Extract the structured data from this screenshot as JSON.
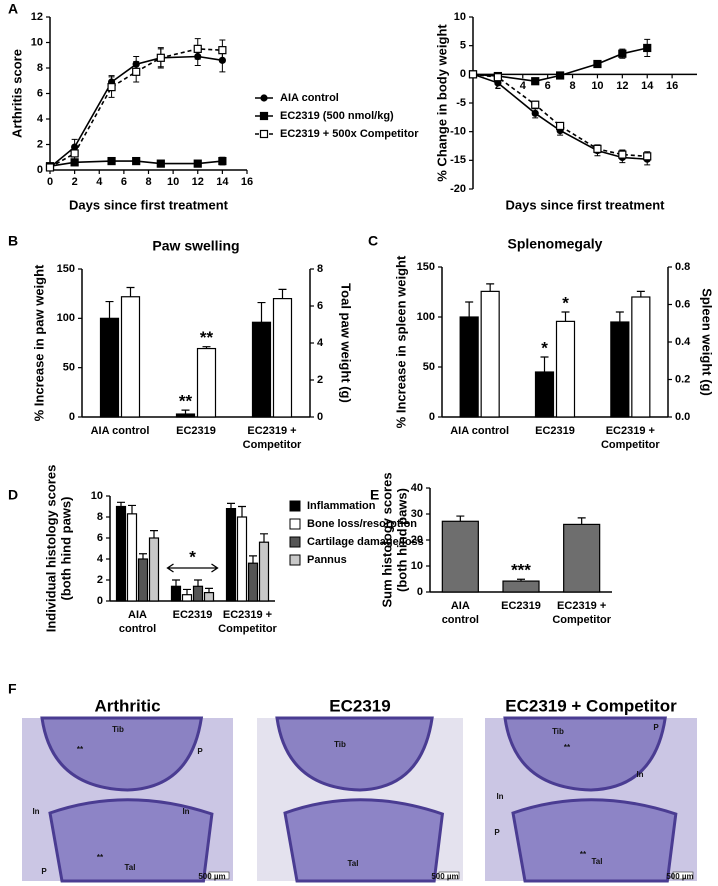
{
  "panel_labels": [
    "A",
    "B",
    "C",
    "D",
    "E",
    "F"
  ],
  "chart_data": [
    {
      "type": "line",
      "xlabel": "Days since first treatment",
      "ylabel": [
        "Arthritis score"
      ],
      "legend": "right",
      "x": [
        0,
        2,
        5,
        7,
        9,
        12,
        14
      ],
      "xlim": [
        0,
        16
      ],
      "xticks": [
        0,
        2,
        4,
        6,
        8,
        10,
        12,
        14,
        16
      ],
      "ylim": [
        0,
        12
      ],
      "yticks": [
        0,
        2,
        4,
        6,
        8,
        10,
        12
      ],
      "series": [
        {
          "name": "AIA control",
          "color": "#000000",
          "marker": "circle",
          "dash": false,
          "values": [
            0.2,
            1.8,
            6.9,
            8.3,
            8.8,
            8.9,
            8.6
          ],
          "errors": [
            0.1,
            0.6,
            0.5,
            0.6,
            0.7,
            0.7,
            0.9
          ]
        },
        {
          "name": "EC2319 (500 nmol/kg)",
          "color": "#000000",
          "marker": "square",
          "dash": false,
          "values": [
            0.3,
            0.6,
            0.7,
            0.7,
            0.5,
            0.5,
            0.7
          ],
          "errors": [
            0.1,
            0.2,
            0.2,
            0.2,
            0.2,
            0.2,
            0.3
          ]
        },
        {
          "name": "EC2319 + 500x Competitor",
          "color": "#000000",
          "marker": "open-square",
          "dash": true,
          "values": [
            0.2,
            1.3,
            6.5,
            7.7,
            8.8,
            9.5,
            9.4
          ],
          "errors": [
            0.1,
            0.5,
            0.8,
            0.8,
            0.8,
            0.8,
            0.8
          ]
        }
      ]
    },
    {
      "type": "line",
      "xlabel": "Days since first treatment",
      "ylabel": [
        "% Change in body weight"
      ],
      "x": [
        0,
        2,
        5,
        7,
        10,
        12,
        14
      ],
      "xlim": [
        0,
        18
      ],
      "xticks": [
        2,
        4,
        6,
        8,
        10,
        12,
        14,
        16
      ],
      "ylim": [
        -20,
        10
      ],
      "yticks": [
        -20,
        -15,
        -10,
        -5,
        0,
        5,
        10
      ],
      "series": [
        {
          "color": "#000000",
          "marker": "circle",
          "dash": false,
          "values": [
            0,
            -1.5,
            -6.8,
            -9.8,
            -13.3,
            -14.5,
            -14.8
          ],
          "errors": [
            0.2,
            0.3,
            0.8,
            0.8,
            0.9,
            0.9,
            1.0
          ]
        },
        {
          "color": "#000000",
          "marker": "square",
          "dash": false,
          "values": [
            0,
            -0.3,
            -1.2,
            -0.2,
            1.8,
            3.6,
            4.6
          ],
          "errors": [
            0.2,
            0.3,
            0.5,
            0.6,
            0.6,
            0.8,
            1.5
          ]
        },
        {
          "color": "#000000",
          "marker": "open-square",
          "dash": true,
          "values": [
            0,
            -0.5,
            -5.3,
            -9.0,
            -13.0,
            -14.0,
            -14.3
          ],
          "errors": [
            0.2,
            0.3,
            0.6,
            0.6,
            0.7,
            0.8,
            0.8
          ]
        }
      ]
    },
    {
      "type": "bar",
      "title": "Paw swelling",
      "ylabel": [
        "% Increase in paw weight"
      ],
      "y2label": "Toal paw weight (g)",
      "categories": [
        [
          "AIA control"
        ],
        [
          "EC2319"
        ],
        [
          "EC2319 +",
          "Competitor"
        ]
      ],
      "ylim": [
        0,
        150
      ],
      "yticks": [
        0,
        50,
        100,
        150
      ],
      "y2lim": [
        0,
        8
      ],
      "y2ticks": [
        0,
        2,
        4,
        6,
        8
      ],
      "series": [
        {
          "color": "#000000",
          "values": [
            100,
            3,
            96
          ],
          "errors": [
            17,
            4,
            20
          ]
        },
        {
          "color": "#ffffff",
          "axis": "y2",
          "values": [
            6.5,
            3.7,
            6.4
          ],
          "errors": [
            0.5,
            0.1,
            0.5
          ]
        }
      ],
      "annotations": [
        "**",
        "**"
      ]
    },
    {
      "type": "bar",
      "title": "Splenomegaly",
      "ylabel": [
        "% Increase in spleen weight"
      ],
      "y2label": "Spleen weight (g)",
      "categories": [
        [
          "AIA control"
        ],
        [
          "EC2319"
        ],
        [
          "EC2319 +",
          "Competitor"
        ]
      ],
      "ylim": [
        0,
        150
      ],
      "yticks": [
        0,
        50,
        100,
        150
      ],
      "y2lim": [
        0,
        0.8
      ],
      "y2ticks": [
        {
          "value": 0,
          "label": "0.0"
        },
        0.2,
        0.4,
        0.6,
        0.8
      ],
      "series": [
        {
          "color": "#000000",
          "values": [
            100,
            45,
            95
          ],
          "errors": [
            15,
            15,
            10
          ]
        },
        {
          "color": "#ffffff",
          "axis": "y2",
          "values": [
            0.67,
            0.51,
            0.64
          ],
          "errors": [
            0.04,
            0.05,
            0.03
          ]
        }
      ],
      "annotations": [
        "*",
        "*"
      ]
    },
    {
      "type": "bar",
      "ylabel": [
        "Individual histology scores",
        "(both hind paws)"
      ],
      "legend": "right",
      "categories": [
        [
          "AIA",
          "control"
        ],
        [
          "EC2319"
        ],
        [
          "EC2319 +",
          "Competitor"
        ]
      ],
      "ylim": [
        0,
        10
      ],
      "yticks": [
        0,
        2,
        4,
        6,
        8,
        10
      ],
      "series": [
        {
          "name": "Inflammation",
          "color": "#000000",
          "values": [
            9.0,
            1.4,
            8.8
          ],
          "errors": [
            0.4,
            0.6,
            0.5
          ]
        },
        {
          "name": "Bone loss/resorption",
          "color": "#ffffff",
          "values": [
            8.3,
            0.6,
            8.0
          ],
          "errors": [
            0.8,
            0.5,
            1.0
          ]
        },
        {
          "name": "Cartilage damage/loss",
          "color": "#555555",
          "values": [
            4.0,
            1.4,
            3.6
          ],
          "errors": [
            0.5,
            0.6,
            0.7
          ]
        },
        {
          "name": "Pannus",
          "color": "#c8c8c8",
          "values": [
            6.0,
            0.8,
            5.6
          ],
          "errors": [
            0.7,
            0.4,
            0.8
          ]
        }
      ],
      "annotations": [
        "*"
      ]
    },
    {
      "type": "bar",
      "ylabel": [
        "Sum histology scores",
        "(both hind paws)"
      ],
      "categories": [
        [
          "AIA",
          "control"
        ],
        [
          "EC2319"
        ],
        [
          "EC2319 +",
          "Competitor"
        ]
      ],
      "ylim": [
        0,
        40
      ],
      "yticks": [
        0,
        10,
        20,
        30,
        40
      ],
      "series": [
        {
          "color": "#6e6e6e",
          "values": [
            27.2,
            4.2,
            26.0
          ],
          "errors": [
            2.0,
            0.7,
            2.5
          ]
        }
      ],
      "annotations": [
        "***"
      ]
    }
  ],
  "images": [
    {
      "title": "Arthritic",
      "labels": [
        "Tib",
        "**",
        "P",
        "In",
        "In",
        "**",
        "Tal",
        "P",
        "500 µm"
      ]
    },
    {
      "title": "EC2319",
      "labels": [
        "Tib",
        "Tal",
        "500 µm"
      ]
    },
    {
      "title": "EC2319 + Competitor",
      "labels": [
        "Tib",
        "P",
        "**",
        "In",
        "In",
        "P",
        "**",
        "Tal",
        "500 µm"
      ]
    }
  ]
}
